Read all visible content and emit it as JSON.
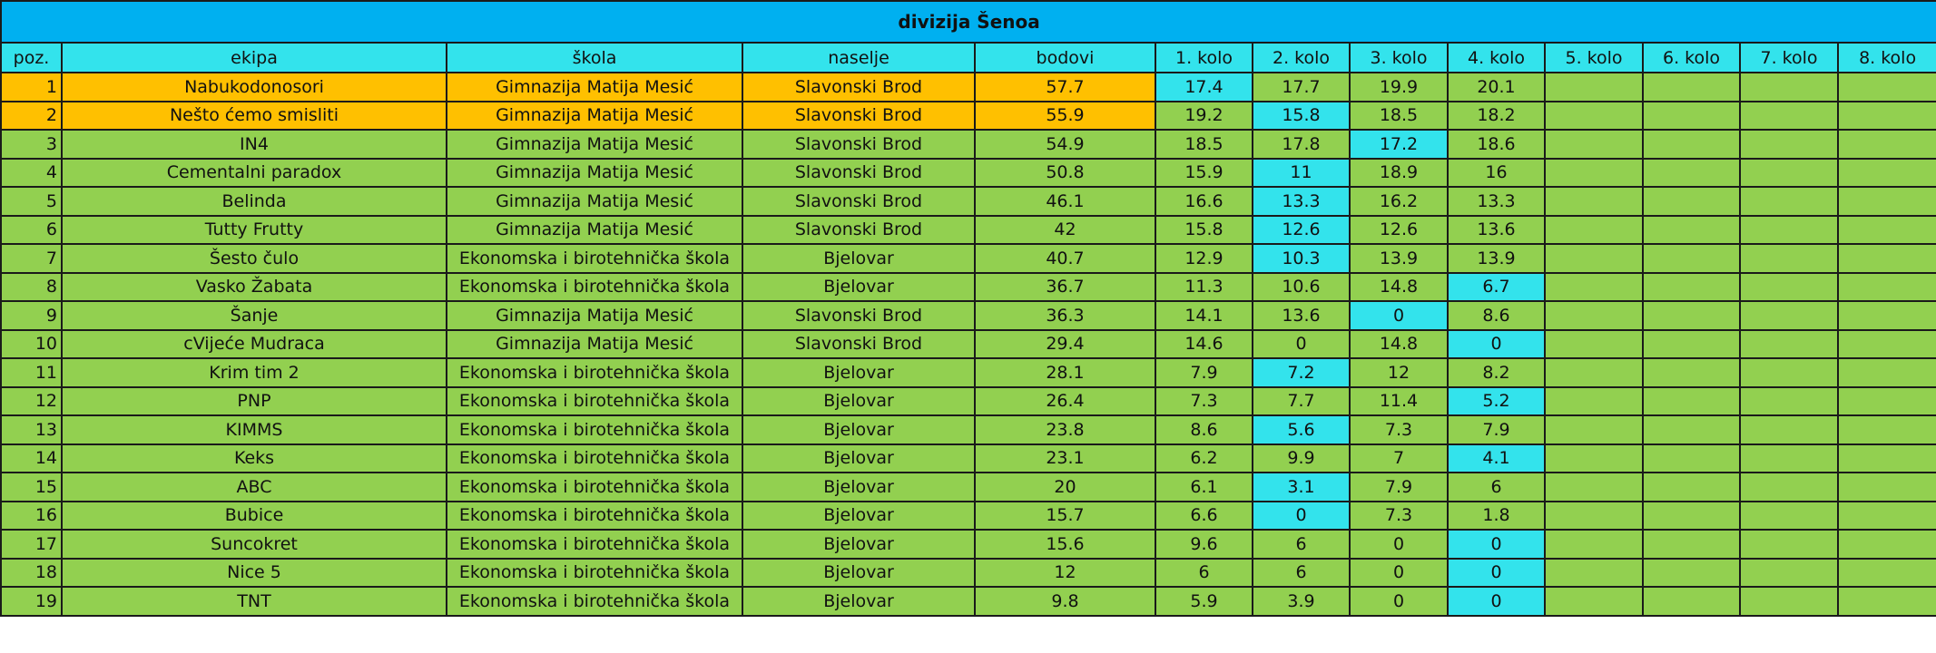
{
  "title": "divizija Šenoa",
  "columns": [
    "poz.",
    "ekipa",
    "škola",
    "naselje",
    "bodovi",
    "1. kolo",
    "2. kolo",
    "3. kolo",
    "4. kolo",
    "5. kolo",
    "6. kolo",
    "7. kolo",
    "8. kolo"
  ],
  "colors": {
    "title_bg": "#00B0F0",
    "header_bg": "#33E3EC",
    "top_rows": "#FFC000",
    "rows": "#92D050",
    "lowest_round": "#33E3EC"
  },
  "rows": [
    {
      "poz": "1",
      "ekipa": "Nabukodonosori",
      "skola": "Gimnazija Matija Mesić",
      "naselje": "Slavonski Brod",
      "bodovi": "57.7",
      "kola": [
        "17.4",
        "17.7",
        "19.9",
        "20.1",
        "",
        "",
        "",
        ""
      ],
      "lowest": 0,
      "top": true
    },
    {
      "poz": "2",
      "ekipa": "Nešto ćemo smisliti",
      "skola": "Gimnazija Matija Mesić",
      "naselje": "Slavonski Brod",
      "bodovi": "55.9",
      "kola": [
        "19.2",
        "15.8",
        "18.5",
        "18.2",
        "",
        "",
        "",
        ""
      ],
      "lowest": 1,
      "top": true
    },
    {
      "poz": "3",
      "ekipa": "IN4",
      "skola": "Gimnazija Matija Mesić",
      "naselje": "Slavonski Brod",
      "bodovi": "54.9",
      "kola": [
        "18.5",
        "17.8",
        "17.2",
        "18.6",
        "",
        "",
        "",
        ""
      ],
      "lowest": 2
    },
    {
      "poz": "4",
      "ekipa": "Cementalni paradox",
      "skola": "Gimnazija Matija Mesić",
      "naselje": "Slavonski Brod",
      "bodovi": "50.8",
      "kola": [
        "15.9",
        "11",
        "18.9",
        "16",
        "",
        "",
        "",
        ""
      ],
      "lowest": 1
    },
    {
      "poz": "5",
      "ekipa": "Belinda",
      "skola": "Gimnazija Matija Mesić",
      "naselje": "Slavonski Brod",
      "bodovi": "46.1",
      "kola": [
        "16.6",
        "13.3",
        "16.2",
        "13.3",
        "",
        "",
        "",
        ""
      ],
      "lowest": 1
    },
    {
      "poz": "6",
      "ekipa": "Tutty Frutty",
      "skola": "Gimnazija Matija Mesić",
      "naselje": "Slavonski Brod",
      "bodovi": "42",
      "kola": [
        "15.8",
        "12.6",
        "12.6",
        "13.6",
        "",
        "",
        "",
        ""
      ],
      "lowest": 1
    },
    {
      "poz": "7",
      "ekipa": "Šesto čulo",
      "skola": "Ekonomska i birotehnička škola",
      "naselje": "Bjelovar",
      "bodovi": "40.7",
      "kola": [
        "12.9",
        "10.3",
        "13.9",
        "13.9",
        "",
        "",
        "",
        ""
      ],
      "lowest": 1
    },
    {
      "poz": "8",
      "ekipa": "Vasko Žabata",
      "skola": "Ekonomska i birotehnička škola",
      "naselje": "Bjelovar",
      "bodovi": "36.7",
      "kola": [
        "11.3",
        "10.6",
        "14.8",
        "6.7",
        "",
        "",
        "",
        ""
      ],
      "lowest": 3
    },
    {
      "poz": "9",
      "ekipa": "Šanje",
      "skola": "Gimnazija Matija Mesić",
      "naselje": "Slavonski Brod",
      "bodovi": "36.3",
      "kola": [
        "14.1",
        "13.6",
        "0",
        "8.6",
        "",
        "",
        "",
        ""
      ],
      "lowest": 2
    },
    {
      "poz": "10",
      "ekipa": "cVijeće Mudraca",
      "skola": "Gimnazija Matija Mesić",
      "naselje": "Slavonski Brod",
      "bodovi": "29.4",
      "kola": [
        "14.6",
        "0",
        "14.8",
        "0",
        "",
        "",
        "",
        ""
      ],
      "lowest": 3
    },
    {
      "poz": "11",
      "ekipa": "Krim tim 2",
      "skola": "Ekonomska i birotehnička škola",
      "naselje": "Bjelovar",
      "bodovi": "28.1",
      "kola": [
        "7.9",
        "7.2",
        "12",
        "8.2",
        "",
        "",
        "",
        ""
      ],
      "lowest": 1
    },
    {
      "poz": "12",
      "ekipa": "PNP",
      "skola": "Ekonomska i birotehnička škola",
      "naselje": "Bjelovar",
      "bodovi": "26.4",
      "kola": [
        "7.3",
        "7.7",
        "11.4",
        "5.2",
        "",
        "",
        "",
        ""
      ],
      "lowest": 3
    },
    {
      "poz": "13",
      "ekipa": "KIMMS",
      "skola": "Ekonomska i birotehnička škola",
      "naselje": "Bjelovar",
      "bodovi": "23.8",
      "kola": [
        "8.6",
        "5.6",
        "7.3",
        "7.9",
        "",
        "",
        "",
        ""
      ],
      "lowest": 1
    },
    {
      "poz": "14",
      "ekipa": "Keks",
      "skola": "Ekonomska i birotehnička škola",
      "naselje": "Bjelovar",
      "bodovi": "23.1",
      "kola": [
        "6.2",
        "9.9",
        "7",
        "4.1",
        "",
        "",
        "",
        ""
      ],
      "lowest": 3
    },
    {
      "poz": "15",
      "ekipa": "ABC",
      "skola": "Ekonomska i birotehnička škola",
      "naselje": "Bjelovar",
      "bodovi": "20",
      "kola": [
        "6.1",
        "3.1",
        "7.9",
        "6",
        "",
        "",
        "",
        ""
      ],
      "lowest": 1
    },
    {
      "poz": "16",
      "ekipa": "Bubice",
      "skola": "Ekonomska i birotehnička škola",
      "naselje": "Bjelovar",
      "bodovi": "15.7",
      "kola": [
        "6.6",
        "0",
        "7.3",
        "1.8",
        "",
        "",
        "",
        ""
      ],
      "lowest": 1
    },
    {
      "poz": "17",
      "ekipa": "Suncokret",
      "skola": "Ekonomska i birotehnička škola",
      "naselje": "Bjelovar",
      "bodovi": "15.6",
      "kola": [
        "9.6",
        "6",
        "0",
        "0",
        "",
        "",
        "",
        ""
      ],
      "lowest": 3
    },
    {
      "poz": "18",
      "ekipa": "Nice 5",
      "skola": "Ekonomska i birotehnička škola",
      "naselje": "Bjelovar",
      "bodovi": "12",
      "kola": [
        "6",
        "6",
        "0",
        "0",
        "",
        "",
        "",
        ""
      ],
      "lowest": 3
    },
    {
      "poz": "19",
      "ekipa": "TNT",
      "skola": "Ekonomska i birotehnička škola",
      "naselje": "Bjelovar",
      "bodovi": "9.8",
      "kola": [
        "5.9",
        "3.9",
        "0",
        "0",
        "",
        "",
        "",
        ""
      ],
      "lowest": 3
    }
  ]
}
